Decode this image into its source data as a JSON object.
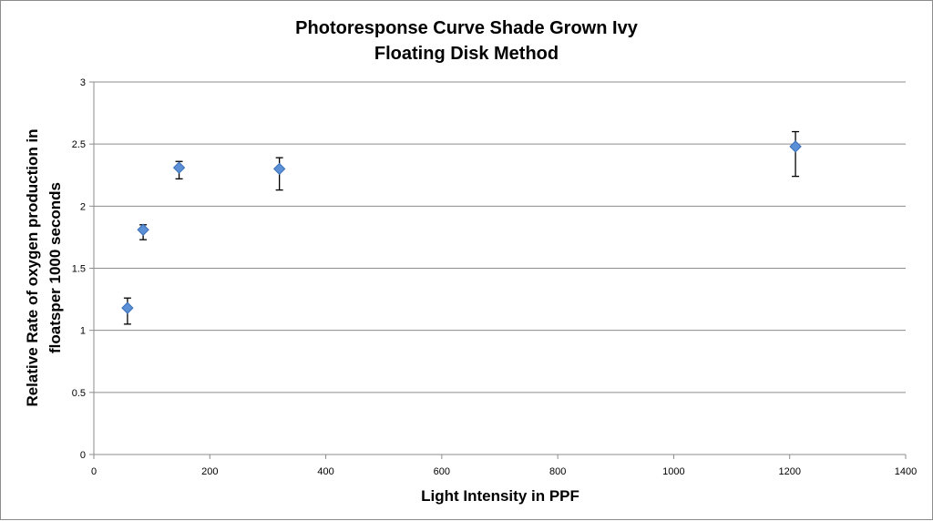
{
  "chart_data": {
    "type": "scatter",
    "title_lines": [
      "Photoresponse Curve Shade Grown Ivy",
      "Floating Disk Method"
    ],
    "xlabel": "Light Intensity in PPF",
    "ylabel_lines": [
      "Relative Rate of oxygen production in",
      "floatsper 1000 seconds"
    ],
    "xlim": [
      0,
      1400
    ],
    "ylim": [
      0,
      3
    ],
    "x_ticks": [
      0,
      200,
      400,
      600,
      800,
      1000,
      1200,
      1400
    ],
    "y_ticks": [
      0,
      0.5,
      1,
      1.5,
      2,
      2.5,
      3
    ],
    "y_tick_labels": [
      "0",
      "0.5",
      "1",
      "1.5",
      "2",
      "2.5",
      "3"
    ],
    "grid": "horizontal",
    "legend": "none",
    "marker": "diamond",
    "marker_color": "#5b8fd6",
    "marker_edge_color": "#3a6fb8",
    "gridline_color": "#8c8c8c",
    "points": [
      {
        "x": 58,
        "y": 1.18,
        "err_low": 1.05,
        "err_high": 1.26
      },
      {
        "x": 85,
        "y": 1.81,
        "err_low": 1.73,
        "err_high": 1.85
      },
      {
        "x": 147,
        "y": 2.31,
        "err_low": 2.22,
        "err_high": 2.36
      },
      {
        "x": 320,
        "y": 2.3,
        "err_low": 2.13,
        "err_high": 2.39
      },
      {
        "x": 1210,
        "y": 2.48,
        "err_low": 2.24,
        "err_high": 2.6
      }
    ]
  }
}
